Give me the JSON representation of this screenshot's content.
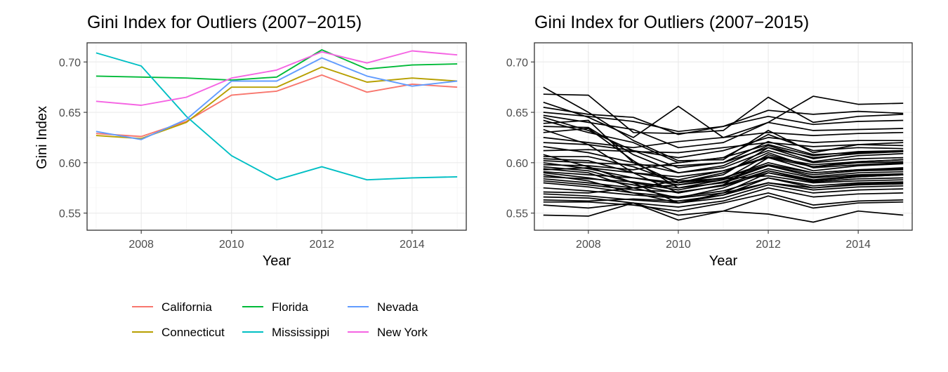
{
  "chart_data": [
    {
      "type": "line",
      "title": "Gini Index for Outliers (2007−2015)",
      "xlabel": "Year",
      "ylabel": "Gini Index",
      "xlim": [
        2006.8,
        2015.2
      ],
      "ylim": [
        0.533,
        0.719
      ],
      "xticks": [
        2008,
        2010,
        2012,
        2014
      ],
      "xtick_labels": [
        "2008",
        "2010",
        "2012",
        "2014"
      ],
      "yticks": [
        0.55,
        0.6,
        0.65,
        0.7
      ],
      "ytick_labels": [
        "0.55",
        "0.60",
        "0.65",
        "0.70"
      ],
      "grid": true,
      "legend_position": "bottom",
      "x": [
        2007,
        2008,
        2009,
        2010,
        2011,
        2012,
        2013,
        2014,
        2015
      ],
      "series": [
        {
          "name": "California",
          "color": "#F8766D",
          "values": [
            0.629,
            0.626,
            0.641,
            0.667,
            0.671,
            0.687,
            0.67,
            0.678,
            0.675
          ]
        },
        {
          "name": "Connecticut",
          "color": "#B79F00",
          "values": [
            0.627,
            0.624,
            0.64,
            0.675,
            0.675,
            0.695,
            0.68,
            0.684,
            0.681
          ]
        },
        {
          "name": "Florida",
          "color": "#00BA38",
          "values": [
            0.686,
            0.685,
            0.684,
            0.682,
            0.685,
            0.712,
            0.693,
            0.697,
            0.698
          ]
        },
        {
          "name": "Mississippi",
          "color": "#00BFC4",
          "values": [
            0.709,
            0.696,
            0.646,
            0.607,
            0.583,
            0.596,
            0.583,
            0.585,
            0.586
          ]
        },
        {
          "name": "Nevada",
          "color": "#619CFF",
          "values": [
            0.631,
            0.623,
            0.643,
            0.681,
            0.681,
            0.704,
            0.686,
            0.676,
            0.681
          ]
        },
        {
          "name": "New York",
          "color": "#F564E3",
          "values": [
            0.661,
            0.657,
            0.665,
            0.684,
            0.692,
            0.71,
            0.699,
            0.711,
            0.707
          ]
        }
      ]
    },
    {
      "type": "line",
      "title": "Gini Index for Outliers (2007−2015)",
      "xlabel": "Year",
      "ylabel": "",
      "xlim": [
        2006.8,
        2015.2
      ],
      "ylim": [
        0.533,
        0.719
      ],
      "xticks": [
        2008,
        2010,
        2012,
        2014
      ],
      "xtick_labels": [
        "2008",
        "2010",
        "2012",
        "2014"
      ],
      "yticks": [
        0.55,
        0.6,
        0.65,
        0.7
      ],
      "ytick_labels": [
        "0.55",
        "0.60",
        "0.65",
        "0.70"
      ],
      "grid": true,
      "legend_position": "none",
      "x": [
        2007,
        2008,
        2009,
        2010,
        2011,
        2012,
        2013,
        2014,
        2015
      ],
      "line_color": "#000000",
      "series": [
        {
          "values": [
            0.675,
            0.65,
            0.622,
            0.602,
            0.603,
            0.632,
            0.61,
            0.618,
            0.62
          ]
        },
        {
          "values": [
            0.668,
            0.667,
            0.63,
            0.629,
            0.632,
            0.665,
            0.64,
            0.646,
            0.648
          ]
        },
        {
          "values": [
            0.66,
            0.645,
            0.625,
            0.656,
            0.625,
            0.64,
            0.666,
            0.658,
            0.659
          ]
        },
        {
          "values": [
            0.655,
            0.648,
            0.645,
            0.628,
            0.636,
            0.652,
            0.648,
            0.651,
            0.649
          ]
        },
        {
          "values": [
            0.65,
            0.646,
            0.641,
            0.631,
            0.636,
            0.646,
            0.638,
            0.641,
            0.642
          ]
        },
        {
          "values": [
            0.647,
            0.64,
            0.633,
            0.615,
            0.62,
            0.64,
            0.632,
            0.633,
            0.634
          ]
        },
        {
          "values": [
            0.645,
            0.632,
            0.612,
            0.595,
            0.6,
            0.621,
            0.608,
            0.61,
            0.611
          ]
        },
        {
          "values": [
            0.642,
            0.63,
            0.62,
            0.6,
            0.605,
            0.628,
            0.612,
            0.615,
            0.614
          ]
        },
        {
          "values": [
            0.639,
            0.642,
            0.6,
            0.58,
            0.588,
            0.615,
            0.601,
            0.607,
            0.609
          ]
        },
        {
          "values": [
            0.636,
            0.635,
            0.608,
            0.59,
            0.597,
            0.617,
            0.604,
            0.61,
            0.612
          ]
        },
        {
          "values": [
            0.633,
            0.618,
            0.59,
            0.57,
            0.578,
            0.605,
            0.592,
            0.597,
            0.599
          ]
        },
        {
          "values": [
            0.63,
            0.634,
            0.602,
            0.575,
            0.583,
            0.608,
            0.596,
            0.601,
            0.603
          ]
        },
        {
          "values": [
            0.625,
            0.62,
            0.615,
            0.621,
            0.625,
            0.63,
            0.627,
            0.629,
            0.63
          ]
        },
        {
          "values": [
            0.62,
            0.618,
            0.612,
            0.605,
            0.612,
            0.625,
            0.62,
            0.622,
            0.622
          ]
        },
        {
          "values": [
            0.616,
            0.61,
            0.6,
            0.59,
            0.595,
            0.612,
            0.6,
            0.604,
            0.605
          ]
        },
        {
          "values": [
            0.612,
            0.613,
            0.611,
            0.61,
            0.615,
            0.62,
            0.616,
            0.618,
            0.617
          ]
        },
        {
          "values": [
            0.608,
            0.596,
            0.58,
            0.56,
            0.57,
            0.59,
            0.582,
            0.586,
            0.588
          ]
        },
        {
          "values": [
            0.606,
            0.606,
            0.596,
            0.58,
            0.59,
            0.61,
            0.595,
            0.598,
            0.6
          ]
        },
        {
          "values": [
            0.604,
            0.602,
            0.59,
            0.583,
            0.592,
            0.606,
            0.598,
            0.601,
            0.603
          ]
        },
        {
          "values": [
            0.602,
            0.6,
            0.598,
            0.597,
            0.6,
            0.615,
            0.605,
            0.609,
            0.611
          ]
        },
        {
          "values": [
            0.6,
            0.594,
            0.585,
            0.578,
            0.585,
            0.6,
            0.59,
            0.593,
            0.595
          ]
        },
        {
          "values": [
            0.598,
            0.597,
            0.593,
            0.6,
            0.605,
            0.618,
            0.607,
            0.611,
            0.612
          ]
        },
        {
          "values": [
            0.596,
            0.592,
            0.58,
            0.573,
            0.581,
            0.597,
            0.586,
            0.59,
            0.591
          ]
        },
        {
          "values": [
            0.594,
            0.59,
            0.575,
            0.565,
            0.575,
            0.592,
            0.582,
            0.586,
            0.588
          ]
        },
        {
          "values": [
            0.593,
            0.595,
            0.59,
            0.586,
            0.592,
            0.605,
            0.596,
            0.6,
            0.601
          ]
        },
        {
          "values": [
            0.591,
            0.588,
            0.585,
            0.58,
            0.585,
            0.598,
            0.59,
            0.593,
            0.594
          ]
        },
        {
          "values": [
            0.59,
            0.585,
            0.578,
            0.57,
            0.578,
            0.592,
            0.583,
            0.587,
            0.588
          ]
        },
        {
          "values": [
            0.588,
            0.582,
            0.57,
            0.56,
            0.568,
            0.585,
            0.575,
            0.579,
            0.58
          ]
        },
        {
          "values": [
            0.586,
            0.584,
            0.581,
            0.575,
            0.58,
            0.594,
            0.585,
            0.588,
            0.589
          ]
        },
        {
          "values": [
            0.584,
            0.58,
            0.575,
            0.578,
            0.583,
            0.597,
            0.588,
            0.592,
            0.593
          ]
        },
        {
          "values": [
            0.582,
            0.578,
            0.573,
            0.571,
            0.577,
            0.59,
            0.581,
            0.584,
            0.585
          ]
        },
        {
          "values": [
            0.58,
            0.576,
            0.57,
            0.566,
            0.572,
            0.585,
            0.577,
            0.58,
            0.581
          ]
        },
        {
          "values": [
            0.575,
            0.572,
            0.568,
            0.565,
            0.57,
            0.58,
            0.573,
            0.576,
            0.577
          ]
        },
        {
          "values": [
            0.571,
            0.57,
            0.575,
            0.582,
            0.584,
            0.587,
            0.58,
            0.582,
            0.583
          ]
        },
        {
          "values": [
            0.569,
            0.567,
            0.563,
            0.56,
            0.565,
            0.578,
            0.57,
            0.573,
            0.574
          ]
        },
        {
          "values": [
            0.566,
            0.565,
            0.56,
            0.556,
            0.562,
            0.575,
            0.566,
            0.569,
            0.57
          ]
        },
        {
          "values": [
            0.563,
            0.562,
            0.564,
            0.562,
            0.568,
            0.58,
            0.575,
            0.578,
            0.579
          ]
        },
        {
          "values": [
            0.561,
            0.561,
            0.558,
            0.552,
            0.56,
            0.57,
            0.558,
            0.562,
            0.563
          ]
        },
        {
          "values": [
            0.558,
            0.555,
            0.56,
            0.543,
            0.552,
            0.567,
            0.555,
            0.56,
            0.561
          ]
        },
        {
          "values": [
            0.548,
            0.547,
            0.56,
            0.548,
            0.552,
            0.549,
            0.541,
            0.552,
            0.548
          ]
        }
      ]
    }
  ]
}
